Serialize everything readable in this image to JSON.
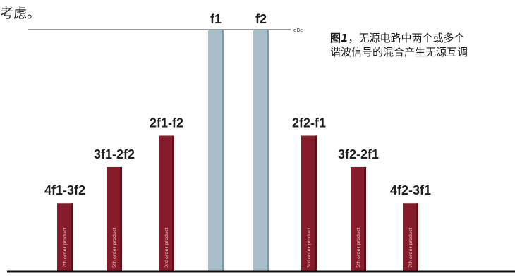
{
  "page": {
    "top_text": "考虑。",
    "caption": {
      "fig_word": "图",
      "fig_number": "1",
      "line1_rest": "，无源电路中两个或多个",
      "line2": "谐波信号的混合产生无源互调"
    }
  },
  "colors": {
    "carrier": "#a8bfca",
    "carrier_edge": "#7f98a5",
    "product": "#861c2a",
    "product_edge": "#5d0f1a",
    "baseline": "#111111",
    "reference_line": "#9a9a9a"
  },
  "chart_data": {
    "type": "bar",
    "title": "",
    "xlabel": "",
    "ylabel": "",
    "reference_line": {
      "label": "dBc",
      "value": 100
    },
    "ylim": [
      0,
      100
    ],
    "bars": [
      {
        "name": "4f1-3f2",
        "value": 28,
        "order_label": "7th order product",
        "kind": "product"
      },
      {
        "name": "3f1-2f2",
        "value": 43,
        "order_label": "5th order product",
        "kind": "product"
      },
      {
        "name": "2f1-f2",
        "value": 56,
        "order_label": "3rd order product",
        "kind": "product"
      },
      {
        "name": "f1",
        "value": 100,
        "order_label": "",
        "kind": "carrier"
      },
      {
        "name": "f2",
        "value": 100,
        "order_label": "",
        "kind": "carrier"
      },
      {
        "name": "2f2-f1",
        "value": 56,
        "order_label": "3rd order product",
        "kind": "product"
      },
      {
        "name": "3f2-2f1",
        "value": 43,
        "order_label": "5th order product",
        "kind": "product"
      },
      {
        "name": "4f2-3f1",
        "value": 28,
        "order_label": "7th order product",
        "kind": "product"
      }
    ]
  }
}
